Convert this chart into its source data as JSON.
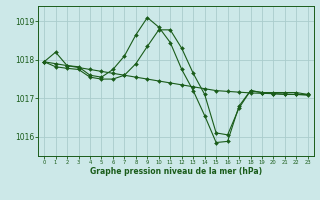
{
  "background_color": "#cce8e8",
  "grid_color": "#aacccc",
  "line_color": "#1a5c1a",
  "title": "Graphe pression niveau de la mer (hPa)",
  "xlim": [
    -0.5,
    23.5
  ],
  "ylim": [
    1015.5,
    1019.4
  ],
  "yticks": [
    1016,
    1017,
    1018,
    1019
  ],
  "xticks": [
    0,
    1,
    2,
    3,
    4,
    5,
    6,
    7,
    8,
    9,
    10,
    11,
    12,
    13,
    14,
    15,
    16,
    17,
    18,
    19,
    20,
    21,
    22,
    23
  ],
  "series": [
    {
      "x": [
        0,
        1,
        2,
        3,
        4,
        5,
        6,
        7,
        8,
        9,
        10,
        11,
        12,
        13,
        14,
        15,
        16,
        17,
        18,
        19,
        20,
        21,
        22,
        23
      ],
      "y": [
        1017.95,
        1018.2,
        1017.85,
        1017.82,
        1017.6,
        1017.55,
        1017.75,
        1018.1,
        1018.65,
        1019.1,
        1018.85,
        1018.45,
        1017.75,
        1017.2,
        1016.55,
        1015.85,
        1015.88,
        1016.8,
        1017.2,
        1017.15,
        1017.15,
        1017.15,
        1017.15,
        1017.1
      ]
    },
    {
      "x": [
        0,
        1,
        2,
        3,
        4,
        5,
        6,
        7,
        8,
        9,
        10,
        11,
        12,
        13,
        14,
        15,
        16,
        17,
        18,
        19,
        20,
        21,
        22,
        23
      ],
      "y": [
        1017.95,
        1017.9,
        1017.85,
        1017.8,
        1017.75,
        1017.7,
        1017.65,
        1017.6,
        1017.55,
        1017.5,
        1017.45,
        1017.4,
        1017.35,
        1017.3,
        1017.25,
        1017.2,
        1017.18,
        1017.16,
        1017.14,
        1017.13,
        1017.12,
        1017.11,
        1017.1,
        1017.1
      ]
    },
    {
      "x": [
        0,
        1,
        2,
        3,
        4,
        5,
        6,
        7,
        8,
        9,
        10,
        11,
        12,
        13,
        14,
        15,
        16,
        17,
        18,
        19,
        20,
        21,
        22,
        23
      ],
      "y": [
        1017.95,
        1017.82,
        1017.78,
        1017.75,
        1017.55,
        1017.5,
        1017.5,
        1017.6,
        1017.9,
        1018.35,
        1018.78,
        1018.78,
        1018.3,
        1017.65,
        1017.1,
        1016.1,
        1016.05,
        1016.75,
        1017.2,
        1017.15,
        1017.12,
        1017.1,
        1017.1,
        1017.08
      ]
    }
  ]
}
